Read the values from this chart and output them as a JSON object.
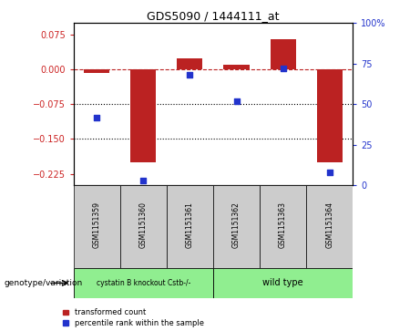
{
  "title": "GDS5090 / 1444111_at",
  "samples": [
    "GSM1151359",
    "GSM1151360",
    "GSM1151361",
    "GSM1151362",
    "GSM1151363",
    "GSM1151364"
  ],
  "bar_values": [
    -0.008,
    -0.2,
    0.025,
    0.01,
    0.065,
    -0.2
  ],
  "blue_percentile": [
    42,
    3,
    68,
    52,
    72,
    8
  ],
  "ylim_left": [
    -0.25,
    0.1
  ],
  "ylim_right": [
    0,
    100
  ],
  "yticks_left": [
    0.075,
    0,
    -0.075,
    -0.15,
    -0.225
  ],
  "yticks_right": [
    100,
    75,
    50,
    25,
    0
  ],
  "dotted_lines": [
    -0.075,
    -0.15
  ],
  "group1_label": "cystatin B knockout Cstb-/-",
  "group2_label": "wild type",
  "group1_indices": [
    0,
    1,
    2
  ],
  "group2_indices": [
    3,
    4,
    5
  ],
  "group1_color": "#90ee90",
  "group2_color": "#90ee90",
  "bar_color": "#bb2222",
  "blue_color": "#2233cc",
  "bar_width": 0.55,
  "legend_label_red": "transformed count",
  "legend_label_blue": "percentile rank within the sample",
  "genotype_label": "genotype/variation",
  "fig_bg": "#ffffff",
  "plot_bg": "#ffffff",
  "tick_color_left": "#cc2222",
  "tick_color_right": "#2233cc",
  "sample_box_color": "#cccccc"
}
